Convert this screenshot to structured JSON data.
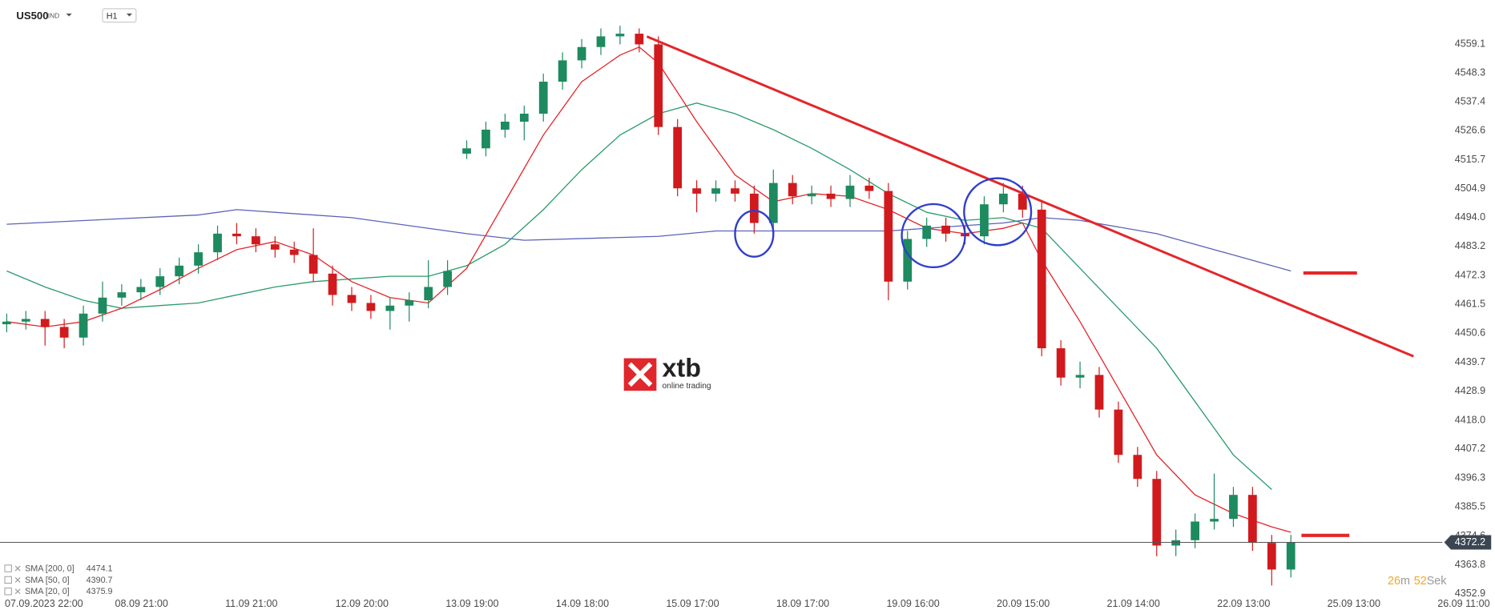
{
  "chart_data": {
    "type": "candlestick",
    "title": "US500",
    "subtitle": "IND",
    "timeframe": "H1",
    "x": [
      -5,
      -1,
      3,
      7,
      11,
      15,
      19,
      23,
      27,
      31,
      35,
      39,
      43,
      47,
      51,
      55,
      59,
      63,
      67,
      71,
      75,
      79,
      83,
      87,
      91,
      95,
      99,
      103,
      107,
      111,
      115,
      119,
      123,
      127,
      131,
      135,
      139,
      143,
      147,
      151,
      155,
      159,
      163,
      167,
      171,
      175,
      179,
      183,
      187,
      191,
      195,
      199,
      203,
      207,
      211,
      215,
      219,
      223,
      227,
      231,
      235,
      239,
      243,
      247,
      251,
      255,
      259,
      263
    ],
    "open": [
      4454,
      4455,
      4456,
      4453,
      4449,
      4458,
      4464,
      4466,
      4468,
      4472,
      4476,
      4481,
      4488,
      4487,
      4484,
      4482,
      4480,
      4473,
      4465,
      4462,
      4459,
      4461,
      4463,
      4468,
      4518,
      4520,
      4527,
      4530,
      4533,
      4545,
      4553,
      4558,
      4562,
      4563,
      4559,
      4528,
      4505,
      4503,
      4505,
      4503,
      4492,
      4507,
      4502,
      4503,
      4501,
      4506,
      4504,
      4470,
      4486,
      4491,
      4488,
      4487,
      4499,
      4503,
      4497,
      4445,
      4434,
      4435,
      4422,
      4405,
      4396,
      4371,
      4373,
      4380,
      4381,
      4390,
      4372,
      4362
    ],
    "high": [
      4458,
      4459,
      4459,
      4456,
      4461,
      4470,
      4469,
      4471,
      4475,
      4479,
      4484,
      4491,
      4492,
      4490,
      4487,
      4485,
      4490,
      4476,
      4468,
      4465,
      4464,
      4466,
      4478,
      4478,
      4523,
      4530,
      4533,
      4536,
      4548,
      4556,
      4561,
      4565,
      4566,
      4565,
      4562,
      4531,
      4508,
      4508,
      4508,
      4506,
      4512,
      4510,
      4506,
      4506,
      4510,
      4509,
      4507,
      4489,
      4494,
      4494,
      4491,
      4502,
      4507,
      4506,
      4500,
      4448,
      4440,
      4438,
      4425,
      4408,
      4399,
      4377,
      4383,
      4398,
      4393,
      4393,
      4375,
      4375
    ],
    "low": [
      4451,
      4452,
      4446,
      4445,
      4446,
      4455,
      4461,
      4463,
      4465,
      4469,
      4473,
      4478,
      4484,
      4481,
      4479,
      4477,
      4470,
      4461,
      4459,
      4456,
      4452,
      4455,
      4460,
      4465,
      4516,
      4517,
      4524,
      4523,
      4530,
      4542,
      4550,
      4555,
      4559,
      4556,
      4525,
      4502,
      4496,
      4500,
      4500,
      4488,
      4489,
      4499,
      4499,
      4498,
      4498,
      4501,
      4463,
      4467,
      4483,
      4485,
      4484,
      4484,
      4496,
      4494,
      4442,
      4431,
      4430,
      4419,
      4402,
      4393,
      4367,
      4367,
      4370,
      4377,
      4378,
      4369,
      4356,
      4359
    ],
    "close": [
      4455,
      4456,
      4453,
      4449,
      4458,
      4464,
      4466,
      4468,
      4472,
      4476,
      4481,
      4488,
      4487,
      4484,
      4482,
      4480,
      4473,
      4465,
      4462,
      4459,
      4461,
      4463,
      4468,
      4474,
      4520,
      4527,
      4530,
      4533,
      4545,
      4553,
      4558,
      4562,
      4563,
      4559,
      4528,
      4505,
      4503,
      4505,
      4503,
      4492,
      4507,
      4502,
      4503,
      4501,
      4506,
      4504,
      4470,
      4486,
      4491,
      4488,
      4487,
      4499,
      4503,
      4497,
      4445,
      4434,
      4435,
      4422,
      4405,
      4396,
      4371,
      4373,
      4380,
      4381,
      4390,
      4372,
      4362,
      4372.2
    ],
    "up_color": "#1d8a5f",
    "down_color": "#d11a1d",
    "series": [
      {
        "name": "SMA [200, 0]",
        "color": "#5b63b7",
        "last_value": 4474.1,
        "x": [
          -5,
          35,
          43,
          67,
          91,
          103,
          131,
          143,
          179,
          203,
          211,
          219,
          235,
          251,
          263
        ],
        "values": [
          4491.5,
          4495,
          4497,
          4494,
          4488,
          4485.5,
          4487,
          4489,
          4489,
          4492,
          4494,
          4493,
          4488,
          4480,
          4474
        ]
      },
      {
        "name": "SMA [50, 0]",
        "color": "#2a9c6c",
        "last_value": 4390.7,
        "x": [
          -5,
          3,
          11,
          19,
          27,
          35,
          43,
          51,
          59,
          67,
          75,
          83,
          91,
          99,
          107,
          115,
          123,
          131,
          139,
          147,
          155,
          163,
          171,
          179,
          187,
          195,
          203,
          211,
          219,
          227,
          235,
          243,
          251,
          259
        ],
        "values": [
          4474,
          4468,
          4463,
          4460,
          4461,
          4462,
          4465,
          4468,
          4470,
          4471,
          4472,
          4472,
          4476,
          4484,
          4497,
          4512,
          4525,
          4533,
          4537,
          4533,
          4527,
          4520,
          4512,
          4503,
          4496,
          4493,
          4494,
          4490,
          4475,
          4460,
          4445,
          4425,
          4405,
          4392
        ]
      },
      {
        "name": "SMA [20, 0]",
        "color": "#e3262a",
        "last_value": 4375.9,
        "x": [
          -5,
          3,
          11,
          19,
          27,
          35,
          43,
          51,
          59,
          67,
          75,
          83,
          91,
          99,
          107,
          115,
          123,
          127,
          131,
          139,
          147,
          155,
          163,
          171,
          179,
          187,
          195,
          203,
          207,
          211,
          219,
          227,
          235,
          243,
          251,
          259,
          263
        ],
        "values": [
          4455,
          4453,
          4455,
          4460,
          4467,
          4475,
          4482,
          4485,
          4480,
          4470,
          4464,
          4462,
          4475,
          4500,
          4525,
          4545,
          4555,
          4558,
          4552,
          4530,
          4510,
          4500,
          4503,
          4502,
          4497,
          4490,
          4488,
          4490,
          4492,
          4478,
          4455,
          4430,
          4405,
          4390,
          4383,
          4378,
          4376
        ]
      }
    ],
    "last_price": 4372.2,
    "last_price_color": "#3b4652",
    "xlim": [
      -6.4,
      305.6
    ],
    "xticks": [
      {
        "value": 0,
        "label": "07.09.2023  22:00"
      },
      {
        "value": 23,
        "label": "08.09  21:00"
      },
      {
        "value": 46,
        "label": "11.09  21:00"
      },
      {
        "value": 69,
        "label": "12.09  20:00"
      },
      {
        "value": 92,
        "label": "13.09  19:00"
      },
      {
        "value": 115,
        "label": "14.09  18:00"
      },
      {
        "value": 138,
        "label": "15.09  17:00"
      },
      {
        "value": 161,
        "label": "18.09  17:00"
      },
      {
        "value": 184,
        "label": "19.09  16:00"
      },
      {
        "value": 207,
        "label": "20.09  15:00"
      },
      {
        "value": 230,
        "label": "21.09  14:00"
      },
      {
        "value": 253,
        "label": "22.09  13:00"
      },
      {
        "value": 276,
        "label": "25.09  13:00"
      },
      {
        "value": 299,
        "label": "26.09  11:00"
      }
    ],
    "ylim": [
      4352.9,
      4575.6
    ],
    "yticks": [
      4559.1,
      4548.3,
      4537.4,
      4526.6,
      4515.7,
      4504.9,
      {
        "value": 4494,
        "label": "4494.0"
      },
      4483.2,
      4472.3,
      4461.5,
      4450.6,
      4439.7,
      4428.9,
      {
        "value": 4418,
        "label": "4418.0"
      },
      4407.2,
      4396.3,
      4385.5,
      4374.6,
      4363.8,
      4352.9
    ],
    "logo": {
      "name": "xtb",
      "tagline": "online trading"
    },
    "countdown": {
      "minutes": 26,
      "minutes_unit": "m",
      "seconds": 52,
      "seconds_unit": "Sek"
    }
  }
}
